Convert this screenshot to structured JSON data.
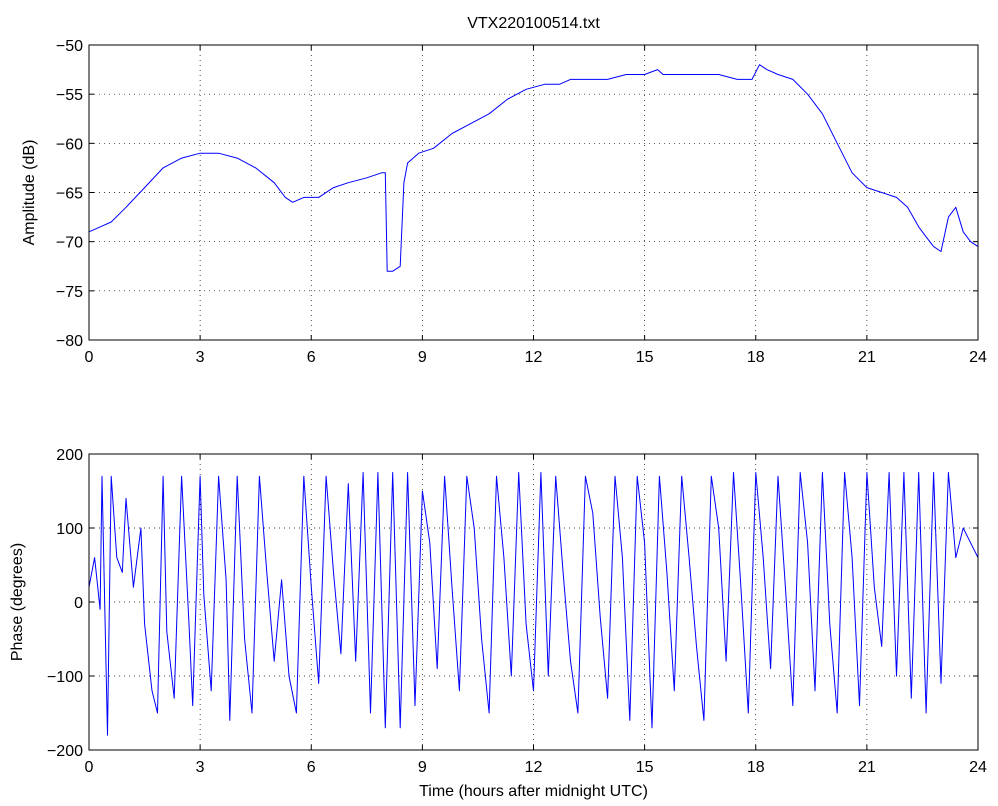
{
  "figure": {
    "title": "VTX220100514.txt",
    "line_color": "#0000ff"
  },
  "chart_data": [
    {
      "type": "line",
      "title": "VTX220100514.txt",
      "xlabel": "",
      "ylabel": "Amplitude (dB)",
      "xlim": [
        0,
        24
      ],
      "ylim": [
        -80,
        -50
      ],
      "xticks": [
        "0",
        "3",
        "6",
        "9",
        "12",
        "15",
        "18",
        "21",
        "24"
      ],
      "yticks": [
        "-80",
        "-75",
        "-70",
        "-65",
        "-60",
        "-55",
        "-50"
      ],
      "grid": true,
      "series": [
        {
          "x": [
            0,
            0.3,
            0.6,
            1.0,
            1.5,
            2.0,
            2.5,
            3.0,
            3.5,
            4.0,
            4.5,
            5.0,
            5.3,
            5.5,
            5.8,
            6.2,
            6.6,
            7.0,
            7.5,
            7.9,
            8.0,
            8.05,
            8.2,
            8.4,
            8.5,
            8.6,
            8.9,
            9.3,
            9.8,
            10.3,
            10.8,
            11.3,
            11.8,
            12.3,
            12.7,
            13.0,
            13.5,
            14.0,
            14.5,
            15.0,
            15.35,
            15.5,
            16.0,
            16.5,
            17.0,
            17.5,
            17.9,
            18.1,
            18.3,
            18.6,
            19.0,
            19.4,
            19.8,
            20.2,
            20.6,
            21.0,
            21.4,
            21.8,
            22.1,
            22.4,
            22.6,
            22.8,
            23.0,
            23.2,
            23.4,
            23.6,
            23.8,
            24.0
          ],
          "y": [
            -69,
            -68.5,
            -68,
            -66.5,
            -64.5,
            -62.5,
            -61.5,
            -61,
            -61,
            -61.5,
            -62.5,
            -64,
            -65.5,
            -66,
            -65.5,
            -65.5,
            -64.5,
            -64,
            -63.5,
            -63,
            -63,
            -73,
            -73,
            -72.5,
            -64,
            -62,
            -61,
            -60.5,
            -59,
            -58,
            -57,
            -55.5,
            -54.5,
            -54,
            -54,
            -53.5,
            -53.5,
            -53.5,
            -53,
            -53,
            -52.5,
            -53,
            -53,
            -53,
            -53,
            -53.5,
            -53.5,
            -52,
            -52.5,
            -53,
            -53.5,
            -55,
            -57,
            -60,
            -63,
            -64.5,
            -65,
            -65.5,
            -66.5,
            -68.5,
            -69.5,
            -70.5,
            -71,
            -67.5,
            -66.5,
            -69,
            -70,
            -70.5
          ]
        }
      ]
    },
    {
      "type": "line",
      "title": "",
      "xlabel": "Time (hours after midnight UTC)",
      "ylabel": "Phase (degrees)",
      "xlim": [
        0,
        24
      ],
      "ylim": [
        -200,
        200
      ],
      "xticks": [
        "0",
        "3",
        "6",
        "9",
        "12",
        "15",
        "18",
        "21",
        "24"
      ],
      "yticks": [
        "-200",
        "-100",
        "0",
        "100",
        "200"
      ],
      "grid": true,
      "series": [
        {
          "x": [
            0,
            0.15,
            0.3,
            0.35,
            0.5,
            0.6,
            0.75,
            0.9,
            1.0,
            1.2,
            1.4,
            1.5,
            1.7,
            1.85,
            2.0,
            2.1,
            2.3,
            2.5,
            2.7,
            2.8,
            3.0,
            3.1,
            3.3,
            3.5,
            3.7,
            3.8,
            4.0,
            4.2,
            4.4,
            4.6,
            4.8,
            5.0,
            5.2,
            5.4,
            5.6,
            5.8,
            6.0,
            6.2,
            6.4,
            6.6,
            6.8,
            7.0,
            7.2,
            7.4,
            7.6,
            7.8,
            8.0,
            8.2,
            8.4,
            8.6,
            8.8,
            9.0,
            9.2,
            9.4,
            9.6,
            9.8,
            10.0,
            10.2,
            10.4,
            10.6,
            10.8,
            11.0,
            11.2,
            11.4,
            11.6,
            11.8,
            12.0,
            12.2,
            12.4,
            12.6,
            12.8,
            13.0,
            13.2,
            13.4,
            13.6,
            13.8,
            14.0,
            14.2,
            14.4,
            14.6,
            14.8,
            15.0,
            15.2,
            15.4,
            15.6,
            15.8,
            16.0,
            16.2,
            16.4,
            16.6,
            16.8,
            17.0,
            17.2,
            17.4,
            17.6,
            17.8,
            18.0,
            18.2,
            18.4,
            18.6,
            18.8,
            19.0,
            19.2,
            19.4,
            19.6,
            19.8,
            20.0,
            20.2,
            20.4,
            20.6,
            20.8,
            21.0,
            21.2,
            21.4,
            21.6,
            21.8,
            22.0,
            22.2,
            22.4,
            22.6,
            22.8,
            23.0,
            23.2,
            23.4,
            23.6,
            23.8,
            24.0
          ],
          "y": [
            20,
            60,
            -10,
            170,
            -180,
            170,
            60,
            40,
            140,
            20,
            100,
            -30,
            -120,
            -150,
            170,
            -40,
            -130,
            170,
            -30,
            -140,
            170,
            10,
            -120,
            170,
            30,
            -160,
            170,
            -50,
            -150,
            170,
            40,
            -80,
            30,
            -100,
            -150,
            170,
            20,
            -110,
            170,
            40,
            -70,
            160,
            -80,
            175,
            -150,
            175,
            -170,
            175,
            -170,
            175,
            -140,
            150,
            80,
            -90,
            170,
            20,
            -120,
            170,
            100,
            -50,
            -150,
            170,
            60,
            -100,
            175,
            -30,
            -120,
            175,
            -100,
            170,
            40,
            -80,
            -150,
            170,
            120,
            -20,
            -130,
            170,
            60,
            -160,
            170,
            80,
            -170,
            170,
            40,
            -120,
            170,
            60,
            -60,
            -160,
            170,
            100,
            -80,
            175,
            20,
            -150,
            175,
            60,
            -90,
            170,
            20,
            -140,
            175,
            80,
            -120,
            175,
            -30,
            -150,
            175,
            60,
            -140,
            175,
            20,
            -60,
            175,
            -100,
            175,
            -130,
            175,
            -150,
            175,
            -110,
            175,
            60,
            100,
            80,
            60
          ]
        }
      ]
    }
  ]
}
